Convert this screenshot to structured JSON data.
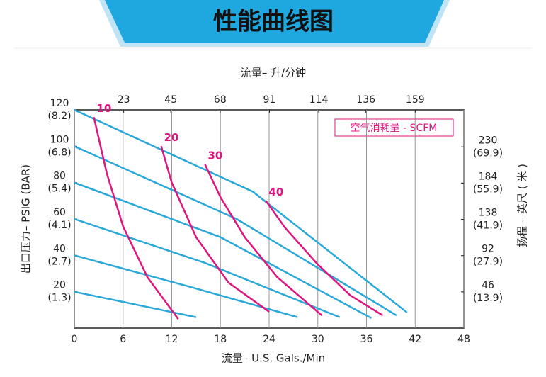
{
  "chart_data": {
    "type": "line",
    "title": "性能曲线图",
    "x_label": "流量– U.S. Gals./Min",
    "x2_label": "流量– 升/分钟",
    "y_label": "出口压力– PSIG (BAR)",
    "y2_label": "扬程 – 英尺 ( 米 )",
    "legend_note": "空气消耗量 - SCFM",
    "xlim": [
      0,
      48
    ],
    "xticks": [
      0,
      6,
      12,
      18,
      24,
      30,
      36,
      42,
      48
    ],
    "x2lim": [
      0,
      181.7
    ],
    "x2ticks": [
      23,
      45,
      68,
      91,
      114,
      136,
      159
    ],
    "ylim": [
      0,
      120
    ],
    "yticks": [
      20,
      40,
      60,
      80,
      100,
      120
    ],
    "ytick_sublabels": [
      "(1.3)",
      "(2.7)",
      "(4.1)",
      "(5.4)",
      "(6.8)",
      "(8.2)"
    ],
    "y2lim": [
      0,
      277
    ],
    "y2ticks": [
      46,
      92,
      138,
      184,
      230
    ],
    "y2tick_sublabels": [
      "(13.9)",
      "(27.9)",
      "(41.9)",
      "(55.9)",
      "(69.9)"
    ],
    "grid": true,
    "series": [
      {
        "color": "#2aa8d8",
        "x": [
          0,
          22,
          41
        ],
        "values": [
          120,
          75,
          8.6
        ]
      },
      {
        "color": "#2aa8d8",
        "x": [
          0,
          20,
          39.7
        ],
        "values": [
          100,
          60,
          7
        ]
      },
      {
        "color": "#2aa8d8",
        "x": [
          0,
          18,
          36.6
        ],
        "values": [
          80,
          50,
          5.5
        ]
      },
      {
        "color": "#2aa8d8",
        "x": [
          0,
          16,
          32.7
        ],
        "values": [
          60,
          36,
          6
        ]
      },
      {
        "color": "#2aa8d8",
        "x": [
          0,
          14,
          27.5
        ],
        "values": [
          40,
          23,
          6
        ]
      },
      {
        "color": "#2aa8d8",
        "x": [
          0,
          15
        ],
        "values": [
          20,
          6
        ]
      },
      {
        "name": "10",
        "color": "#e0147f",
        "x": [
          2.4,
          4,
          6,
          9,
          12.8
        ],
        "values": [
          116,
          85,
          56,
          28,
          5
        ]
      },
      {
        "name": "20",
        "color": "#e0147f",
        "x": [
          10.7,
          12,
          15,
          19,
          24
        ],
        "values": [
          100,
          80,
          50,
          25,
          9
        ]
      },
      {
        "name": "30",
        "color": "#e0147f",
        "x": [
          16.1,
          18,
          21,
          25,
          30.5
        ],
        "values": [
          90,
          72,
          50,
          28,
          7
        ]
      },
      {
        "name": "40",
        "color": "#e0147f",
        "x": [
          23.6,
          26,
          30,
          34,
          38
        ],
        "values": [
          70,
          55,
          35,
          18,
          7
        ]
      }
    ]
  }
}
